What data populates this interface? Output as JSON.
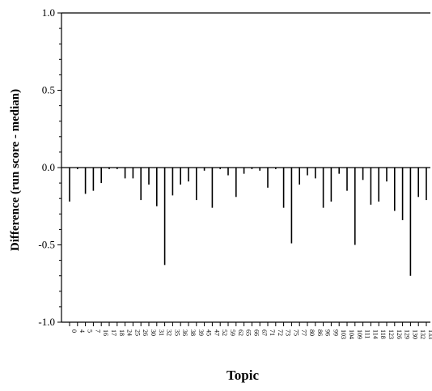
{
  "chart_data": {
    "type": "bar",
    "title": "",
    "xlabel": "Topic",
    "ylabel": "Difference (run score - median)",
    "ylim": [
      -1.0,
      1.0
    ],
    "yticks": [
      "1.0",
      "0.5",
      "0.0",
      "-0.5",
      "-1.0"
    ],
    "ytick_values": [
      1.0,
      0.5,
      0.0,
      -0.5,
      -1.0
    ],
    "grid": false,
    "categories": [
      "0",
      "4",
      "5",
      "7",
      "16",
      "17",
      "18",
      "24",
      "25",
      "26",
      "30",
      "31",
      "32",
      "35",
      "36",
      "38",
      "39",
      "45",
      "47",
      "52",
      "59",
      "62",
      "65",
      "66",
      "67",
      "71",
      "72",
      "73",
      "75",
      "77",
      "80",
      "86",
      "96",
      "99",
      "103",
      "104",
      "109",
      "111",
      "114",
      "118",
      "123",
      "126",
      "129",
      "130",
      "132",
      "133"
    ],
    "values": [
      -0.22,
      -0.01,
      -0.17,
      -0.15,
      -0.1,
      -0.01,
      -0.01,
      -0.07,
      -0.07,
      -0.21,
      -0.11,
      -0.25,
      -0.63,
      -0.18,
      -0.11,
      -0.09,
      -0.21,
      -0.02,
      -0.26,
      -0.01,
      -0.05,
      -0.19,
      -0.04,
      -0.01,
      -0.02,
      -0.13,
      -0.01,
      -0.26,
      -0.49,
      -0.11,
      -0.05,
      -0.07,
      -0.26,
      -0.22,
      -0.04,
      -0.15,
      -0.5,
      -0.08,
      -0.24,
      -0.22,
      -0.09,
      -0.28,
      -0.34,
      -0.7,
      -0.19,
      -0.21
    ]
  }
}
